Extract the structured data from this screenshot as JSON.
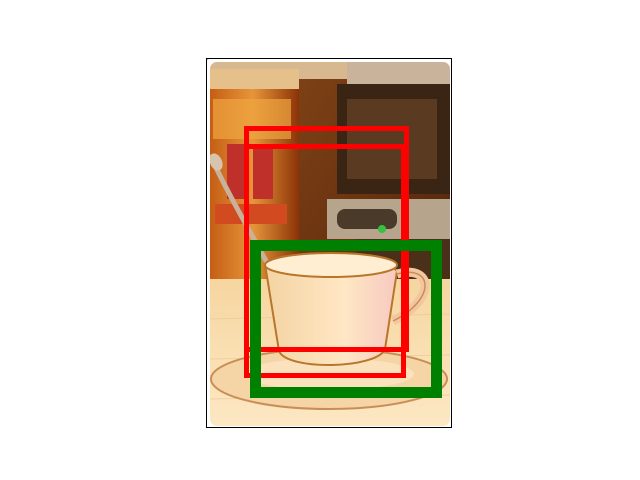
{
  "image": {
    "subject": "",
    "overlays": [
      {
        "name": "red-box-1",
        "color": "#ff0000"
      },
      {
        "name": "red-box-2",
        "color": "#ff0000"
      },
      {
        "name": "green-box",
        "color": "#008000"
      }
    ]
  },
  "colors": {
    "red_box": "#ff0000",
    "green_box": "#008000",
    "background": "#ffffff",
    "frame": "#000000"
  }
}
